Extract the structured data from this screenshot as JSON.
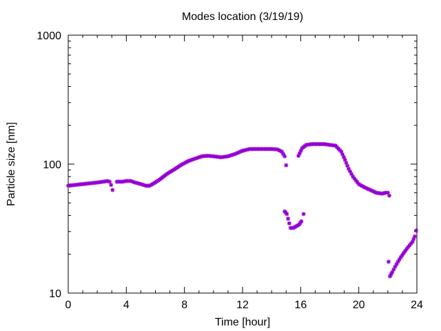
{
  "chart_data": {
    "type": "scatter",
    "title": "Modes location (3/19/19)",
    "xlabel": "Time [hour]",
    "ylabel": "Particle size [nm]",
    "xlim": [
      0,
      24
    ],
    "ylim": [
      10,
      1000
    ],
    "yscale": "log",
    "xticks": [
      0,
      4,
      8,
      12,
      16,
      20,
      24
    ],
    "xtick_labels": [
      "0",
      "4",
      "8",
      "12",
      "16",
      "20",
      "24"
    ],
    "yticks": [
      10,
      100,
      1000
    ],
    "ytick_labels": [
      "10",
      "100",
      "1000"
    ],
    "grid": false,
    "legend": "none",
    "marker": "star",
    "color": "#9400d3",
    "series": [
      {
        "x": [
          0,
          0.5,
          1,
          1.5,
          2,
          2.4,
          2.7,
          2.85,
          2.95,
          3.05
        ],
        "y": [
          68,
          69,
          70,
          71,
          72,
          73,
          74,
          73,
          69,
          63
        ]
      },
      {
        "x": [
          3.35,
          3.7,
          4.0,
          4.3,
          4.6,
          5.0,
          5.35,
          5.6,
          5.9,
          6.3,
          6.8,
          7.3,
          7.8,
          8.3,
          8.8,
          9.2,
          9.6,
          10.0,
          10.5,
          11.0,
          11.5,
          12.0,
          12.5,
          13.0,
          13.5,
          14.0,
          14.4,
          14.7,
          14.9,
          15.0
        ],
        "y": [
          73,
          73,
          74,
          74,
          72,
          70,
          68,
          68,
          71,
          76,
          84,
          91,
          99,
          106,
          111,
          115,
          116,
          115,
          113,
          115,
          120,
          127,
          131,
          131,
          131,
          131,
          130,
          125,
          115,
          98
        ]
      },
      {
        "x": [
          15.85,
          16.1,
          16.4,
          16.8,
          17.2,
          17.6,
          18.0,
          18.4,
          18.8,
          19.05,
          19.3,
          19.6,
          20.0,
          20.4,
          20.8,
          21.2,
          21.6,
          21.85,
          22.0,
          22.1
        ],
        "y": [
          116,
          133,
          141,
          143,
          143,
          143,
          141,
          139,
          125,
          108,
          92,
          80,
          70,
          66,
          63,
          60,
          59,
          60,
          60,
          57
        ]
      },
      {
        "x": [
          14.9,
          15.05,
          15.3,
          15.5,
          15.7,
          15.9,
          16.05,
          16.2
        ],
        "y": [
          43,
          41,
          32,
          32,
          33,
          34,
          36,
          41
        ]
      },
      {
        "x": [
          22.05,
          22.15,
          22.3,
          22.5,
          22.7,
          22.9,
          23.1,
          23.3,
          23.5,
          23.7,
          23.85,
          23.95
        ],
        "y": [
          17.5,
          13.5,
          14.5,
          16,
          17.5,
          19,
          20.5,
          22,
          23.5,
          25,
          27.5,
          30.5
        ]
      }
    ]
  }
}
